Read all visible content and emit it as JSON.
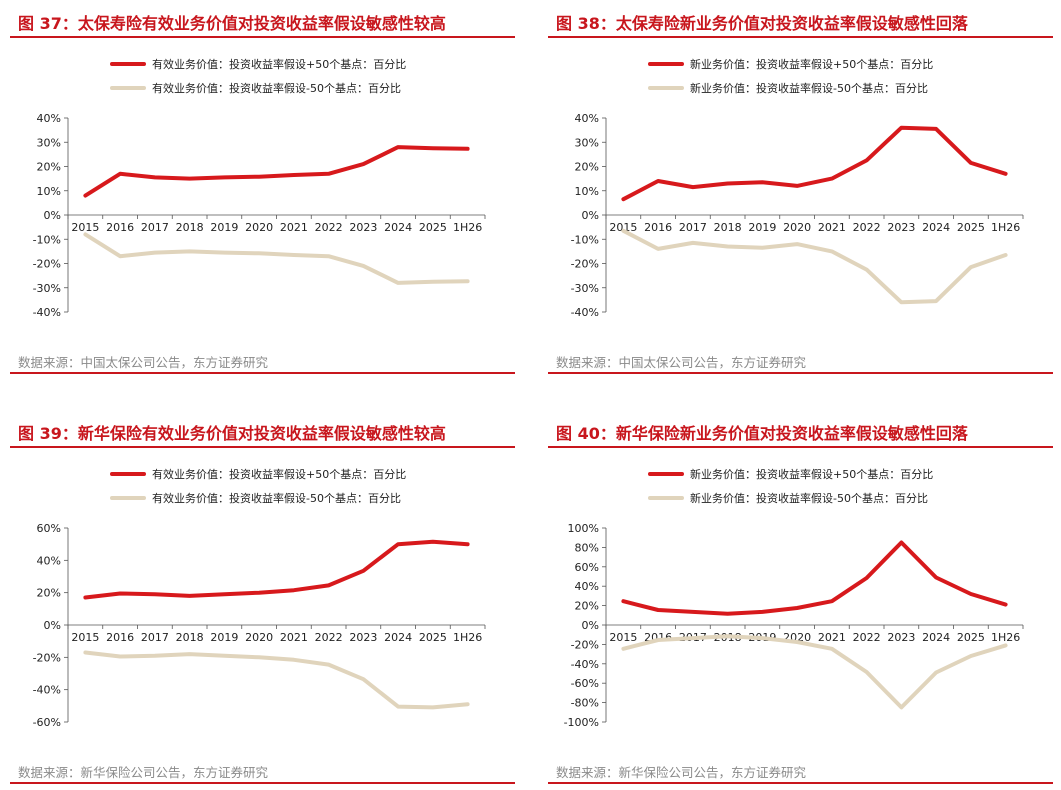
{
  "colors": {
    "accent": "#c8161d",
    "series_up": "#d7191c",
    "series_down": "#e0d4bc",
    "source_text": "#8a8a8a"
  },
  "charts": [
    {
      "title": "图 37：太保寿险有效业务价值对投资收益率假设敏感性较高",
      "source": "数据来源：中国太保公司公告，东方证券研究",
      "chart_data": {
        "type": "line",
        "x": [
          "2015",
          "2016",
          "2017",
          "2018",
          "2019",
          "2020",
          "2021",
          "2022",
          "2023",
          "2024",
          "2025",
          "1H26"
        ],
        "ylim": [
          -40,
          40
        ],
        "yticks": [
          -40,
          -30,
          -20,
          -10,
          0,
          10,
          20,
          30,
          40
        ],
        "ytick_labels": [
          "-40%",
          "-30%",
          "-20%",
          "-10%",
          "0%",
          "10%",
          "20%",
          "30%",
          "40%"
        ],
        "legend_position": "top",
        "grid": false,
        "series": [
          {
            "name": "有效业务价值：投资收益率假设+50个基点：百分比",
            "color": "#d7191c",
            "values": [
              8,
              17,
              15.5,
              15,
              15.5,
              15.8,
              16.5,
              17,
              21,
              28,
              27.5,
              27.3
            ]
          },
          {
            "name": "有效业务价值：投资收益率假设-50个基点：百分比",
            "color": "#e0d4bc",
            "values": [
              -8,
              -17,
              -15.5,
              -15,
              -15.5,
              -15.8,
              -16.5,
              -17,
              -21,
              -28,
              -27.5,
              -27.3
            ]
          }
        ]
      }
    },
    {
      "title": "图 38：太保寿险新业务价值对投资收益率假设敏感性回落",
      "source": "数据来源：中国太保公司公告，东方证券研究",
      "chart_data": {
        "type": "line",
        "x": [
          "2015",
          "2016",
          "2017",
          "2018",
          "2019",
          "2020",
          "2021",
          "2022",
          "2023",
          "2024",
          "2025",
          "1H26"
        ],
        "ylim": [
          -40,
          40
        ],
        "yticks": [
          -40,
          -30,
          -20,
          -10,
          0,
          10,
          20,
          30,
          40
        ],
        "ytick_labels": [
          "-40%",
          "-30%",
          "-20%",
          "-10%",
          "0%",
          "10%",
          "20%",
          "30%",
          "40%"
        ],
        "legend_position": "top",
        "grid": false,
        "series": [
          {
            "name": "新业务价值：投资收益率假设+50个基点：百分比",
            "color": "#d7191c",
            "values": [
              6.5,
              14,
              11.5,
              13,
              13.5,
              12,
              15,
              22.5,
              36,
              35.5,
              21.5,
              17
            ]
          },
          {
            "name": "新业务价值：投资收益率假设-50个基点：百分比",
            "color": "#e0d4bc",
            "values": [
              -6.5,
              -14,
              -11.5,
              -13,
              -13.5,
              -12,
              -15,
              -22.5,
              -36,
              -35.5,
              -21.5,
              -16.5
            ]
          }
        ]
      }
    },
    {
      "title": "图 39：新华保险有效业务价值对投资收益率假设敏感性较高",
      "source": "数据来源：新华保险公司公告，东方证券研究",
      "chart_data": {
        "type": "line",
        "x": [
          "2015",
          "2016",
          "2017",
          "2018",
          "2019",
          "2020",
          "2021",
          "2022",
          "2023",
          "2024",
          "2025",
          "1H26"
        ],
        "ylim": [
          -60,
          60
        ],
        "yticks": [
          -60,
          -40,
          -20,
          0,
          20,
          40,
          60
        ],
        "ytick_labels": [
          "-60%",
          "-40%",
          "-20%",
          "0%",
          "20%",
          "40%",
          "60%"
        ],
        "legend_position": "top",
        "grid": false,
        "series": [
          {
            "name": "有效业务价值：投资收益率假设+50个基点：百分比",
            "color": "#d7191c",
            "values": [
              17,
              19.5,
              19,
              18,
              19,
              20,
              21.5,
              24.5,
              33.5,
              50,
              51.5,
              50
            ]
          },
          {
            "name": "有效业务价值：投资收益率假设-50个基点：百分比",
            "color": "#e0d4bc",
            "values": [
              -17,
              -19.5,
              -19,
              -18,
              -19,
              -20,
              -21.5,
              -24.5,
              -33.5,
              -50.5,
              -51,
              -49
            ]
          }
        ]
      }
    },
    {
      "title": "图 40：新华保险新业务价值对投资收益率假设敏感性回落",
      "source": "数据来源：新华保险公司公告，东方证券研究",
      "chart_data": {
        "type": "line",
        "x": [
          "2015",
          "2016",
          "2017",
          "2018",
          "2019",
          "2020",
          "2021",
          "2022",
          "2023",
          "2024",
          "2025",
          "1H26"
        ],
        "ylim": [
          -100,
          100
        ],
        "yticks": [
          -100,
          -80,
          -60,
          -40,
          -20,
          0,
          20,
          40,
          60,
          80,
          100
        ],
        "ytick_labels": [
          "-100%",
          "-80%",
          "-60%",
          "-40%",
          "-20%",
          "0%",
          "20%",
          "40%",
          "60%",
          "80%",
          "100%"
        ],
        "legend_position": "top",
        "grid": false,
        "series": [
          {
            "name": "新业务价值：投资收益率假设+50个基点：百分比",
            "color": "#d7191c",
            "values": [
              24.5,
              15.5,
              13.5,
              11.5,
              13.5,
              17.5,
              24.5,
              48.5,
              85,
              49,
              32,
              21
            ]
          },
          {
            "name": "新业务价值：投资收益率假设-50个基点：百分比",
            "color": "#e0d4bc",
            "values": [
              -24.5,
              -15.5,
              -13.5,
              -11.5,
              -13.5,
              -17.5,
              -24.5,
              -48.5,
              -85,
              -49,
              -32,
              -21
            ]
          }
        ]
      }
    }
  ]
}
